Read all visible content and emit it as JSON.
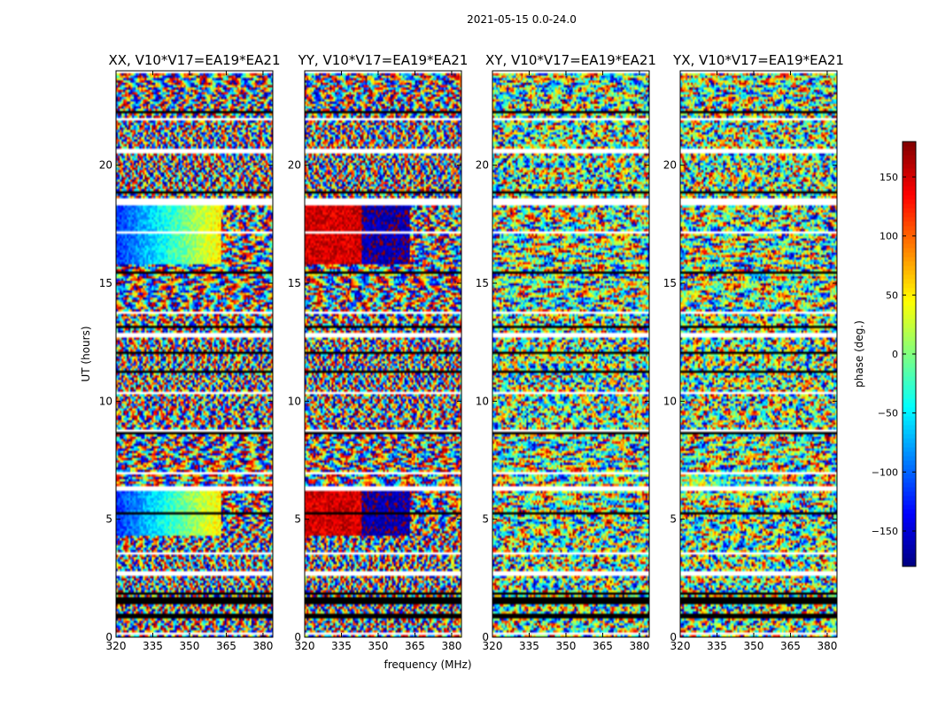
{
  "chart_data": {
    "type": "heatmap",
    "suptitle": "2021-05-15 0.0-24.0",
    "xlabel": "frequency (MHz)",
    "ylabel": "UT (hours)",
    "xlim": [
      320,
      384
    ],
    "ylim": [
      0,
      24
    ],
    "xticks": [
      "320",
      "335",
      "350",
      "365",
      "380"
    ],
    "xtick_values": [
      320,
      335,
      350,
      365,
      380
    ],
    "yticks": [
      "0",
      "5",
      "10",
      "15",
      "20"
    ],
    "ytick_values": [
      0,
      5,
      10,
      15,
      20
    ],
    "colorbar": {
      "label": "phase (deg.)",
      "range": [
        -180,
        180
      ],
      "ticks": [
        "−150",
        "−100",
        "−50",
        "0",
        "50",
        "100",
        "150"
      ],
      "tick_values": [
        -150,
        -100,
        -50,
        0,
        50,
        100,
        150
      ],
      "colormap": "jet"
    },
    "panels": [
      {
        "title": "XX, V10*V17=EA19*EA21"
      },
      {
        "title": "YY, V10*V17=EA19*EA21"
      },
      {
        "title": "XY, V10*V17=EA19*EA21"
      },
      {
        "title": "YX, V10*V17=EA19*EA21"
      }
    ],
    "flagged_white_ut": [
      [
        18.35,
        18.55
      ],
      [
        6.25,
        6.45
      ],
      [
        2.6,
        2.75
      ],
      [
        12.7,
        12.85
      ],
      [
        8.7,
        8.8
      ],
      [
        21.9,
        22.0
      ],
      [
        20.6,
        20.7
      ]
    ],
    "flagged_black_ut": [
      [
        1.4,
        1.7
      ],
      [
        0.85,
        0.95
      ],
      [
        13.1,
        13.2
      ],
      [
        11.2,
        11.3
      ]
    ]
  }
}
